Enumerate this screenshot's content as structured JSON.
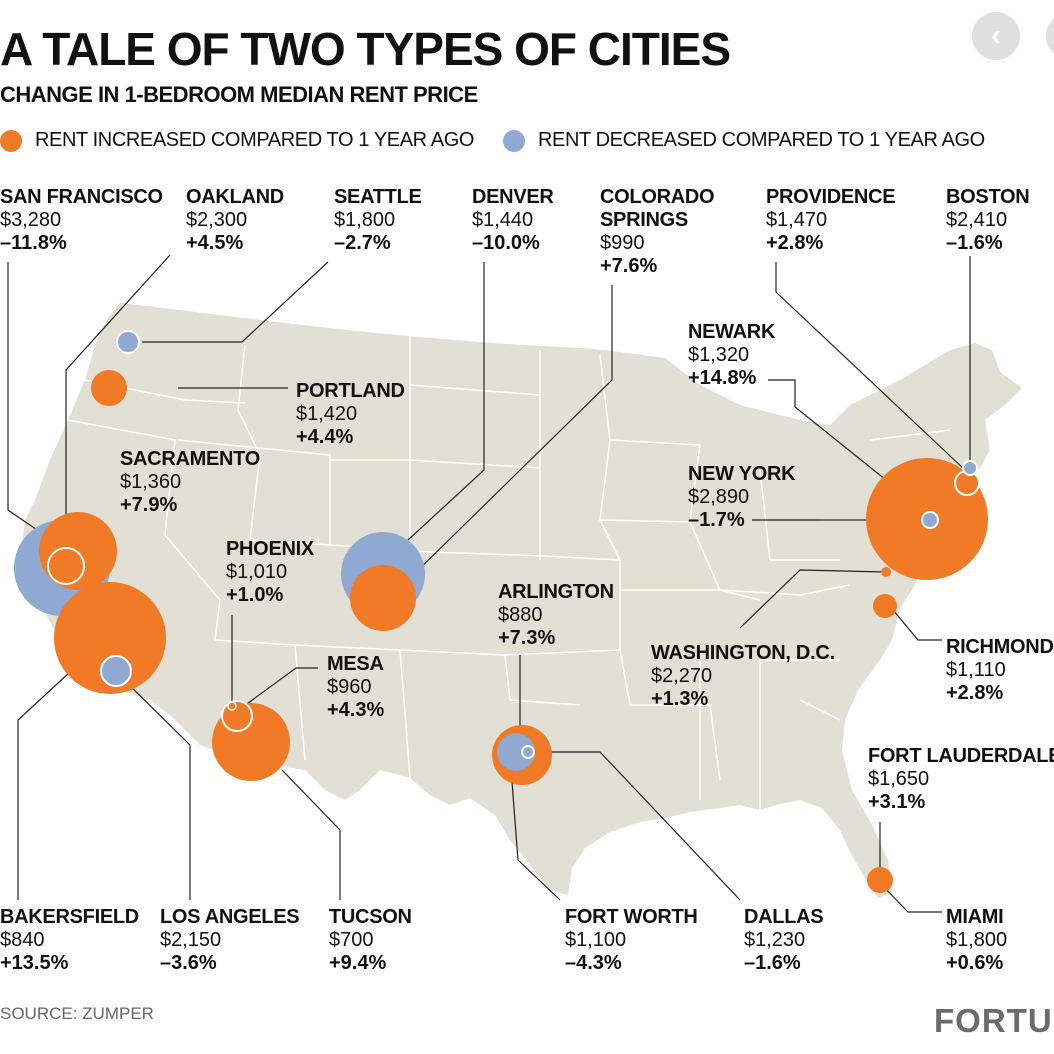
{
  "title": "A TALE OF TWO TYPES OF CITIES",
  "subtitle": "CHANGE IN 1-BEDROOM MEDIAN RENT PRICE",
  "legend": {
    "increased": "RENT INCREASED COMPARED TO 1 YEAR AGO",
    "decreased": "RENT DECREASED COMPARED TO 1 YEAR AGO"
  },
  "colors": {
    "increased": "#f07a26",
    "decreased": "#8fa9d3",
    "land": "#e2dfd4",
    "state_line": "#ffffff",
    "leader": "#222222"
  },
  "icons": {
    "back_button": "chevron-left-icon",
    "back_glyph": "‹"
  },
  "cities": {
    "san_francisco": {
      "name": "SAN FRANCISCO",
      "rent": "$3,280",
      "change": "–11.8%"
    },
    "oakland": {
      "name": "OAKLAND",
      "rent": "$2,300",
      "change": "+4.5%"
    },
    "seattle": {
      "name": "SEATTLE",
      "rent": "$1,800",
      "change": "–2.7%"
    },
    "denver": {
      "name": "DENVER",
      "rent": "$1,440",
      "change": "–10.0%"
    },
    "colorado_springs": {
      "name_line1": "COLORADO",
      "name_line2": "SPRINGS",
      "rent": "$990",
      "change": "+7.6%"
    },
    "providence": {
      "name": "PROVIDENCE",
      "rent": "$1,470",
      "change": "+2.8%"
    },
    "boston": {
      "name": "BOSTON",
      "rent": "$2,410",
      "change": "–1.6%"
    },
    "newark": {
      "name": "NEWARK",
      "rent": "$1,320",
      "change": "+14.8%"
    },
    "portland": {
      "name": "PORTLAND",
      "rent": "$1,420",
      "change": "+4.4%"
    },
    "sacramento": {
      "name": "SACRAMENTO",
      "rent": "$1,360",
      "change": "+7.9%"
    },
    "new_york": {
      "name": "NEW YORK",
      "rent": "$2,890",
      "change": "–1.7%"
    },
    "phoenix": {
      "name": "PHOENIX",
      "rent": "$1,010",
      "change": "+1.0%"
    },
    "arlington": {
      "name": "ARLINGTON",
      "rent": "$880",
      "change": "+7.3%"
    },
    "mesa": {
      "name": "MESA",
      "rent": "$960",
      "change": "+4.3%"
    },
    "washington_dc": {
      "name": "WASHINGTON, D.C.",
      "rent": "$2,270",
      "change": "+1.3%"
    },
    "richmond": {
      "name": "RICHMOND",
      "rent": "$1,110",
      "change": "+2.8%"
    },
    "fort_lauderdale": {
      "name": "FORT LAUDERDALE",
      "rent": "$1,650",
      "change": "+3.1%"
    },
    "bakersfield": {
      "name": "BAKERSFIELD",
      "rent": "$840",
      "change": "+13.5%"
    },
    "los_angeles": {
      "name": "LOS ANGELES",
      "rent": "$2,150",
      "change": "–3.6%"
    },
    "tucson": {
      "name": "TUCSON",
      "rent": "$700",
      "change": "+9.4%"
    },
    "fort_worth": {
      "name": "FORT WORTH",
      "rent": "$1,100",
      "change": "–4.3%"
    },
    "dallas": {
      "name": "DALLAS",
      "rent": "$1,230",
      "change": "–1.6%"
    },
    "miami": {
      "name": "MIAMI",
      "rent": "$1,800",
      "change": "+0.6%"
    }
  },
  "source": "SOURCE: ZUMPER",
  "brand": "FORTUNE"
}
